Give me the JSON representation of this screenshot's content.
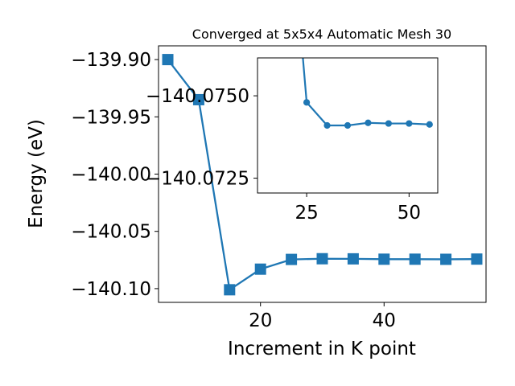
{
  "chart_data": [
    {
      "type": "line",
      "title": "Converged at 5x5x4 Automatic Mesh 30",
      "xlabel": "Increment in K point",
      "ylabel": "Energy (eV)",
      "xlim": [
        3.5,
        56.5
      ],
      "ylim": [
        -140.112,
        -139.888
      ],
      "x_ticks": [
        20,
        40
      ],
      "x_tick_labels": [
        "20",
        "40"
      ],
      "y_ticks": [
        -139.9,
        -139.95,
        -140.0,
        -140.05,
        -140.1
      ],
      "y_tick_labels": [
        "−139.90",
        "−139.95",
        "−140.00",
        "−140.05",
        "−140.10"
      ],
      "grid": false,
      "legend": "none",
      "marker": "square",
      "color": "#1f77b4",
      "x": [
        5,
        10,
        15,
        20,
        25,
        30,
        35,
        40,
        45,
        50,
        55
      ],
      "y": [
        -139.9,
        -139.935,
        -140.101,
        -140.083,
        -140.0745,
        -140.0739,
        -140.074,
        -140.0743,
        -140.0743,
        -140.0744,
        -140.0742
      ]
    },
    {
      "type": "line",
      "role": "inset",
      "title": "",
      "xlabel": "",
      "ylabel": "",
      "xlim": [
        13,
        57
      ],
      "ylim": [
        -140.07205,
        -140.07615
      ],
      "x_ticks": [
        25,
        50
      ],
      "x_tick_labels": [
        "25",
        "50"
      ],
      "y_ticks": [
        -140.075,
        -140.0725
      ],
      "y_tick_labels": [
        "−140.0750",
        "−140.0725"
      ],
      "grid": false,
      "legend": "none",
      "marker": "circle",
      "color": "#1f77b4",
      "x": [
        23.5,
        25,
        30,
        35,
        40,
        45,
        50,
        55
      ],
      "y": [
        -140.077,
        -140.0748,
        -140.0741,
        -140.0741,
        -140.07418,
        -140.07416,
        -140.07416,
        -140.07413
      ]
    }
  ]
}
